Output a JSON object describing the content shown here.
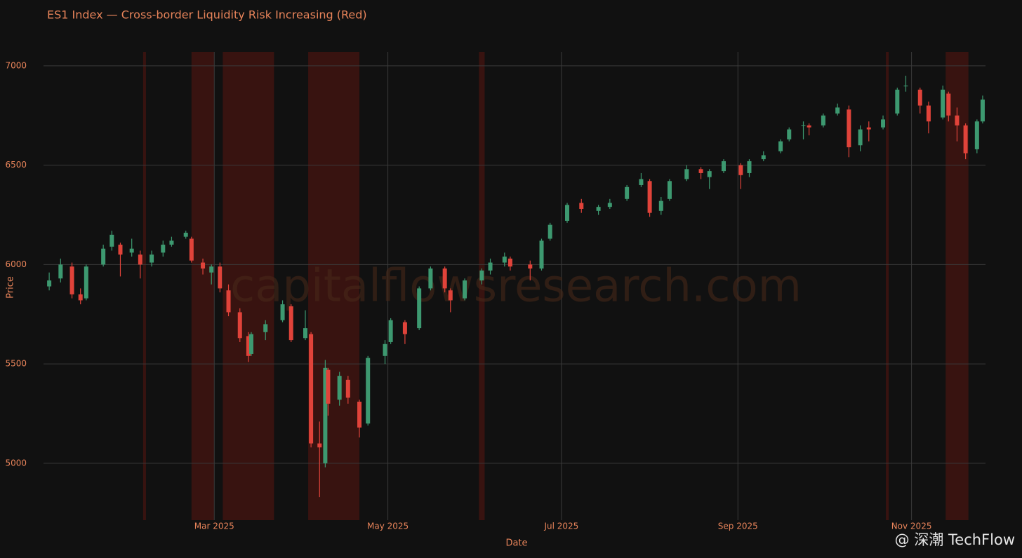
{
  "chart_data": {
    "type": "candlestick",
    "title": "ES1 Index — Cross-border Liquidity Risk Increasing (Red)",
    "x_label": "Date",
    "y_label": "Price",
    "watermark": "capitalflowsresearch.com",
    "badge": "@ 深潮 TechFlow",
    "increasing_color": "#3d9970",
    "decreasing_color": "#e0433a",
    "shade_color": "#5a1510",
    "grid": true,
    "xlim": [
      0,
      331
    ],
    "ylim": [
      4714,
      7070
    ],
    "xticks": [
      {
        "value": 60,
        "label": "Mar 2025"
      },
      {
        "value": 121,
        "label": "May 2025"
      },
      {
        "value": 182,
        "label": "Jul 2025"
      },
      {
        "value": 244,
        "label": "Sep 2025"
      },
      {
        "value": 305,
        "label": "Nov 2025"
      }
    ],
    "yticks": [
      5000,
      5500,
      6000,
      6500,
      7000
    ],
    "shaded": [
      [
        35,
        36
      ],
      [
        52,
        60
      ],
      [
        63,
        81
      ],
      [
        93,
        111
      ],
      [
        153,
        155
      ],
      [
        296,
        297
      ],
      [
        317,
        325
      ]
    ],
    "x": [
      2,
      6,
      10,
      13,
      15,
      21,
      24,
      27,
      31,
      34,
      38,
      42,
      45,
      50,
      52,
      56,
      59,
      62,
      65,
      69,
      72,
      73,
      78,
      84,
      87,
      92,
      94,
      97,
      99,
      100,
      104,
      107,
      111,
      114,
      120,
      122,
      127,
      132,
      136,
      141,
      143,
      148,
      154,
      157,
      162,
      164,
      171,
      175,
      178,
      184,
      189,
      195,
      199,
      205,
      210,
      213,
      217,
      220,
      226,
      231,
      234,
      239,
      245,
      248,
      253,
      259,
      262,
      267,
      269,
      274,
      279,
      283,
      287,
      290,
      295,
      300,
      303,
      308,
      311,
      316,
      318,
      321,
      324,
      328,
      330
    ],
    "open": [
      5890,
      5930,
      5990,
      5850,
      5830,
      6000,
      6090,
      6100,
      6060,
      6050,
      6010,
      6060,
      6100,
      6140,
      6130,
      6010,
      5960,
      5990,
      5870,
      5760,
      5640,
      5550,
      5660,
      5720,
      5790,
      5630,
      5650,
      5100,
      5000,
      5470,
      5320,
      5420,
      5310,
      5200,
      5540,
      5610,
      5710,
      5680,
      5880,
      5980,
      5870,
      5830,
      5920,
      5970,
      6010,
      6030,
      6000,
      5980,
      6130,
      6220,
      6310,
      6270,
      6290,
      6330,
      6400,
      6420,
      6270,
      6330,
      6430,
      6480,
      6440,
      6470,
      6500,
      6460,
      6530,
      6570,
      6630,
      6700,
      6700,
      6700,
      6760,
      6780,
      6600,
      6690,
      6690,
      6760,
      6900,
      6880,
      6800,
      6740,
      6860,
      6750,
      6700,
      6580,
      6720
    ],
    "high": [
      5960,
      6030,
      6010,
      5880,
      6000,
      6100,
      6170,
      6110,
      6130,
      6070,
      6070,
      6120,
      6140,
      6170,
      6140,
      6030,
      6000,
      6010,
      5900,
      5780,
      5660,
      5660,
      5720,
      5820,
      5800,
      5770,
      5660,
      5210,
      5520,
      5480,
      5460,
      5440,
      5320,
      5540,
      5620,
      5730,
      5720,
      5890,
      5990,
      5990,
      5880,
      5930,
      5980,
      6030,
      6060,
      6040,
      6020,
      6130,
      6210,
      6310,
      6330,
      6300,
      6330,
      6400,
      6460,
      6430,
      6340,
      6430,
      6500,
      6490,
      6480,
      6530,
      6510,
      6530,
      6570,
      6630,
      6690,
      6720,
      6710,
      6760,
      6810,
      6800,
      6700,
      6720,
      6750,
      6890,
      6950,
      6890,
      6820,
      6900,
      6870,
      6790,
      6710,
      6730,
      6850
    ],
    "low": [
      5870,
      5910,
      5830,
      5800,
      5820,
      5990,
      6070,
      5940,
      6040,
      5930,
      5990,
      6040,
      6090,
      6130,
      6010,
      5950,
      5900,
      5860,
      5740,
      5610,
      5510,
      5540,
      5620,
      5710,
      5610,
      5620,
      5080,
      4830,
      4980,
      5240,
      5290,
      5300,
      5130,
      5190,
      5500,
      5600,
      5600,
      5670,
      5870,
      5860,
      5760,
      5820,
      5900,
      5950,
      5990,
      5970,
      5920,
      5970,
      6120,
      6210,
      6260,
      6250,
      6280,
      6320,
      6390,
      6240,
      6250,
      6320,
      6420,
      6430,
      6380,
      6460,
      6380,
      6440,
      6520,
      6560,
      6620,
      6630,
      6650,
      6690,
      6750,
      6540,
      6570,
      6620,
      6680,
      6750,
      6870,
      6760,
      6660,
      6730,
      6720,
      6620,
      6530,
      6560,
      6710
    ],
    "close": [
      5920,
      6000,
      5850,
      5820,
      5990,
      6080,
      6150,
      6050,
      6080,
      6000,
      6050,
      6100,
      6120,
      6160,
      6020,
      5980,
      5990,
      5880,
      5760,
      5630,
      5540,
      5650,
      5700,
      5800,
      5620,
      5680,
      5100,
      5080,
      5480,
      5300,
      5440,
      5330,
      5180,
      5530,
      5600,
      5720,
      5650,
      5880,
      5980,
      5880,
      5820,
      5920,
      5970,
      6010,
      6040,
      5990,
      5980,
      6120,
      6200,
      6300,
      6280,
      6290,
      6310,
      6390,
      6430,
      6260,
      6320,
      6420,
      6480,
      6460,
      6470,
      6520,
      6450,
      6520,
      6550,
      6620,
      6680,
      6700,
      6690,
      6750,
      6790,
      6590,
      6680,
      6680,
      6730,
      6880,
      6900,
      6800,
      6720,
      6880,
      6750,
      6700,
      6560,
      6720,
      6830
    ]
  }
}
